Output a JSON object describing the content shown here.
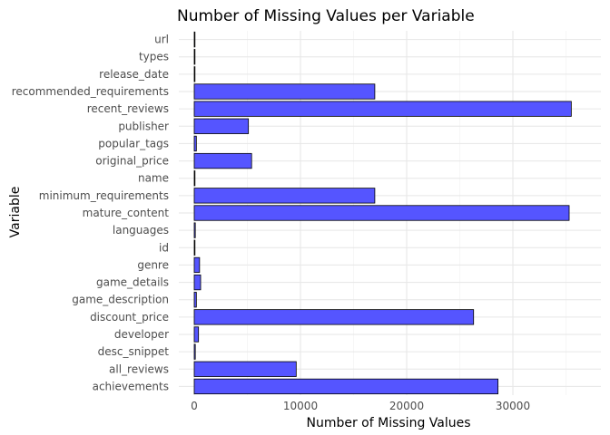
{
  "chart_data": {
    "type": "bar",
    "orientation": "horizontal",
    "title": "Number of Missing Values per Variable",
    "xlabel": "Number of Missing Values",
    "ylabel": "Variable",
    "xlim": [
      0,
      36500
    ],
    "xticks": [
      0,
      10000,
      20000,
      30000
    ],
    "grid": true,
    "bar_color": "#5555ff",
    "bar_edge_color": "#000000",
    "categories": [
      "url",
      "types",
      "release_date",
      "recommended_requirements",
      "recent_reviews",
      "publisher",
      "popular_tags",
      "original_price",
      "name",
      "minimum_requirements",
      "mature_content",
      "languages",
      "id",
      "genre",
      "game_details",
      "game_description",
      "discount_price",
      "developer",
      "desc_snippet",
      "all_reviews",
      "achievements"
    ],
    "values": [
      0,
      0,
      0,
      17000,
      35500,
      5100,
      200,
      5400,
      0,
      17000,
      35300,
      100,
      0,
      500,
      600,
      200,
      26300,
      400,
      100,
      9600,
      28600
    ]
  }
}
